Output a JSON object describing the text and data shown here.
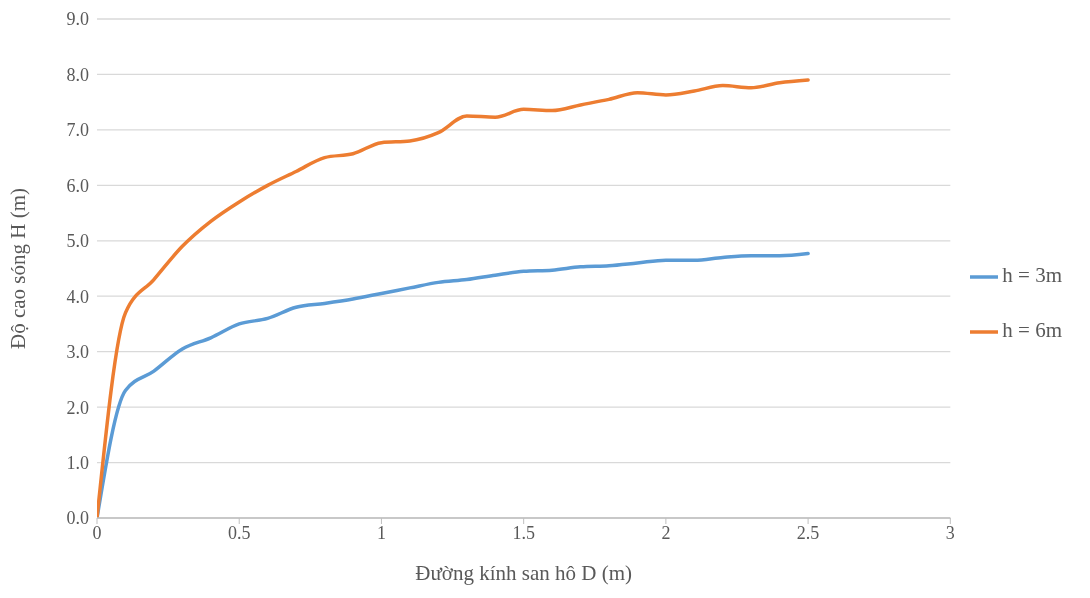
{
  "chart_data": {
    "type": "line",
    "xlabel": "Đường kính san hô D (m)",
    "ylabel": "Độ cao sóng H (m)",
    "x": [
      0,
      0.1,
      0.2,
      0.3,
      0.4,
      0.5,
      0.6,
      0.7,
      0.8,
      0.9,
      1.0,
      1.1,
      1.2,
      1.3,
      1.4,
      1.5,
      1.6,
      1.7,
      1.8,
      1.9,
      2.0,
      2.1,
      2.2,
      2.3,
      2.4,
      2.5
    ],
    "series": [
      {
        "name": "h = 3m",
        "color": "#5b9bd5",
        "values": [
          0,
          2.3,
          2.65,
          3.05,
          3.25,
          3.5,
          3.6,
          3.8,
          3.87,
          3.95,
          4.05,
          4.15,
          4.25,
          4.3,
          4.38,
          4.45,
          4.47,
          4.53,
          4.55,
          4.6,
          4.65,
          4.65,
          4.7,
          4.73,
          4.73,
          4.77
        ]
      },
      {
        "name": "h = 6m",
        "color": "#ed7d31",
        "values": [
          0,
          3.7,
          4.3,
          4.9,
          5.35,
          5.7,
          6.0,
          6.25,
          6.5,
          6.57,
          6.77,
          6.8,
          6.95,
          7.25,
          7.23,
          7.37,
          7.35,
          7.45,
          7.55,
          7.67,
          7.63,
          7.7,
          7.8,
          7.76,
          7.85,
          7.9
        ]
      }
    ],
    "xlim": [
      0,
      3
    ],
    "xticks": [
      0,
      0.5,
      1,
      1.5,
      2,
      2.5,
      3
    ],
    "ylim": [
      0,
      9
    ],
    "yticks": [
      {
        "value": 0,
        "label": "0.0"
      },
      {
        "value": 1,
        "label": "1.0"
      },
      {
        "value": 2,
        "label": "2.0"
      },
      {
        "value": 3,
        "label": "3.0"
      },
      {
        "value": 4,
        "label": "4.0"
      },
      {
        "value": 5,
        "label": "5.0"
      },
      {
        "value": 6,
        "label": "6.0"
      },
      {
        "value": 7,
        "label": "7.0"
      },
      {
        "value": 8,
        "label": "8.0"
      },
      {
        "value": 9,
        "label": "9.0"
      }
    ],
    "grid": "y",
    "legend": "right",
    "marker": "none",
    "line_style": "solid"
  }
}
